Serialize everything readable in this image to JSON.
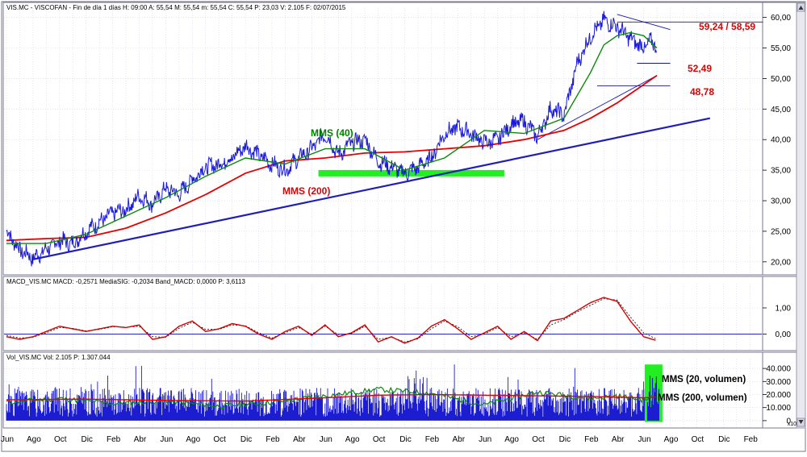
{
  "colors": {
    "price": "#1a1adc",
    "mms40": "#0a8a0a",
    "mms200": "#e60000",
    "trend": "#1f1fb8",
    "macd": "#d40000",
    "signal": "#000000",
    "zero": "#2828c8",
    "support_zone": "#22ee22",
    "volume": "#1c1cd0",
    "vol_mms20": "#0a8a0a",
    "vol_mms200": "#e60000",
    "grid": "#cfd2e8",
    "axis": "#5a5a7a"
  },
  "icons": {
    "scroll_up": "triangle-up",
    "scroll_down": "triangle-down"
  },
  "panels": {
    "price": {
      "header": "VIS.MC - VISCOFAN - Fin de día 1 días  H: 09:00  A: 55,54  M: 55,54  m: 55,54  C: 55,54  P: 23,03  V: 2.105  F: 02/07/2015",
      "scale": "linear",
      "ylim": [
        18,
        61
      ],
      "yticks": [
        20,
        25,
        30,
        35,
        40,
        45,
        50,
        55,
        60
      ],
      "ytick_labels": [
        "20,00",
        "25,00",
        "30,00",
        "35,00",
        "40,00",
        "45,00",
        "50,00",
        "55,00",
        "60,00"
      ]
    },
    "macd": {
      "header": "MACD_VIS.MC  MACD: -0,2571  MediaSIG: -0,2034  Band_MACD: 0,0000  P: 3,6113",
      "ylim": [
        -0.6,
        1.8
      ],
      "yticks": [
        0,
        1
      ],
      "ytick_labels": [
        "0,00",
        "1,00"
      ]
    },
    "volume": {
      "header": "Vol_VIS.MC  Vol: 2.105  P: 1.307.044",
      "ylim": [
        -5000,
        45000
      ],
      "yticks": [
        0,
        10000,
        20000,
        30000,
        40000
      ],
      "ytick_labels": [
        "0",
        "10.000",
        "20.000",
        "30.000",
        "40.000"
      ],
      "axis_suffix": "x10"
    }
  },
  "annotations": {
    "mms40": "MMS (40)",
    "mms200": "MMS (200)",
    "resistance": "59,24 / 58,59",
    "level1": "52,49",
    "level2": "48,78",
    "vol_mms20": "MMS (20, volumen)",
    "vol_mms200": "MMS (200, volumen)"
  },
  "chart_data": {
    "type": "line",
    "x_axis": {
      "unit": "month",
      "start": "2011-06",
      "last_data": "2015-07-02",
      "tick_labels": [
        "Jun",
        "Ago",
        "Oct",
        "Dic",
        "Feb",
        "Abr",
        "Jun",
        "Ago",
        "Oct",
        "Dic",
        "Feb",
        "Abr",
        "Jun",
        "Ago",
        "Oct",
        "Dic",
        "Feb",
        "Abr",
        "Jun",
        "Ago",
        "Oct",
        "Dic",
        "Feb",
        "Abr",
        "Jun",
        "Ago",
        "Oct",
        "Dic",
        "Feb"
      ]
    },
    "price_series": [
      {
        "name": "VIS.MC",
        "type": "line",
        "x": [
          0,
          1,
          2,
          3,
          4,
          5,
          6,
          7,
          8,
          9,
          10,
          11,
          12,
          13,
          14,
          15,
          16,
          17,
          18,
          19,
          20,
          21,
          22,
          23,
          24,
          25,
          26,
          27,
          28,
          29,
          30,
          31,
          32,
          33,
          34,
          35,
          36,
          37,
          38,
          39,
          40,
          41,
          42,
          43,
          44,
          45,
          46,
          47,
          48,
          48.5,
          49
        ],
        "values": [
          25.0,
          22.0,
          20.6,
          22.0,
          23.5,
          23.0,
          25.0,
          26.5,
          28.0,
          28.5,
          30.8,
          29.5,
          32.0,
          31.0,
          33.5,
          35.5,
          36.0,
          37.0,
          39.0,
          37.5,
          36.0,
          35.0,
          37.0,
          38.5,
          41.0,
          37.5,
          39.5,
          40.0,
          36.5,
          35.5,
          34.5,
          35.5,
          37.0,
          41.0,
          42.0,
          41.0,
          39.5,
          40.0,
          42.5,
          43.0,
          40.5,
          45.0,
          44.0,
          52.5,
          57.0,
          59.5,
          58.5,
          56.5,
          55.0,
          56.0,
          55.5
        ]
      },
      {
        "name": "MMS (40)",
        "type": "line",
        "x": [
          0,
          3,
          6,
          9,
          12,
          15,
          18,
          21,
          24,
          27,
          30,
          33,
          36,
          39,
          42,
          44,
          45,
          46,
          47,
          48,
          49
        ],
        "values": [
          23.0,
          23.0,
          24.5,
          27.5,
          30.5,
          34.0,
          37.0,
          36.0,
          38.5,
          38.5,
          35.0,
          37.0,
          41.5,
          41.0,
          43.5,
          51.0,
          55.5,
          57.0,
          57.5,
          57.0,
          55.0
        ]
      },
      {
        "name": "MMS (200)",
        "type": "line",
        "x": [
          0,
          3,
          6,
          9,
          12,
          15,
          18,
          21,
          24,
          27,
          30,
          33,
          36,
          39,
          42,
          44,
          46,
          48,
          49
        ],
        "values": [
          23.5,
          23.8,
          24.0,
          25.5,
          28.0,
          31.0,
          34.5,
          36.5,
          37.0,
          37.8,
          38.0,
          38.5,
          39.0,
          40.0,
          41.5,
          43.5,
          46.0,
          49.0,
          50.5
        ]
      }
    ],
    "drawn_lines": [
      {
        "name": "trend-main",
        "x": [
          2,
          53
        ],
        "values": [
          20.4,
          43.5
        ]
      },
      {
        "name": "trend-steep",
        "x": [
          40,
          49
        ],
        "values": [
          40.0,
          50.5
        ]
      },
      {
        "name": "resistance-down",
        "x": [
          46,
          50
        ],
        "values": [
          60.5,
          58.0
        ]
      },
      {
        "name": "level-59",
        "x": [
          46,
          57
        ],
        "values": [
          59.24,
          59.24
        ]
      },
      {
        "name": "level-52",
        "x": [
          47.5,
          50
        ],
        "values": [
          52.49,
          52.49
        ]
      },
      {
        "name": "level-48",
        "x": [
          44.5,
          50
        ],
        "values": [
          48.78,
          48.78
        ]
      }
    ],
    "support_zone": {
      "x": [
        23.5,
        37.5
      ],
      "value": 34.5
    },
    "macd_series": [
      {
        "name": "MACD",
        "x": [
          0,
          1,
          2,
          3,
          4,
          5,
          6,
          7,
          8,
          9,
          10,
          11,
          12,
          13,
          14,
          15,
          16,
          17,
          18,
          19,
          20,
          21,
          22,
          23,
          24,
          25,
          26,
          27,
          28,
          29,
          30,
          31,
          32,
          33,
          34,
          35,
          36,
          37,
          38,
          39,
          40,
          41,
          42,
          43,
          44,
          45,
          46,
          47,
          48,
          49
        ],
        "values": [
          -0.1,
          -0.2,
          -0.1,
          0.1,
          0.3,
          0.2,
          0.1,
          0.2,
          0.3,
          0.25,
          0.35,
          -0.2,
          -0.1,
          0.3,
          0.5,
          0.1,
          0.2,
          0.4,
          0.3,
          0.0,
          -0.2,
          0.1,
          0.3,
          -0.05,
          0.35,
          -0.1,
          0.05,
          0.35,
          -0.3,
          -0.1,
          -0.35,
          -0.15,
          0.3,
          0.55,
          0.2,
          -0.2,
          0.05,
          0.3,
          -0.2,
          0.1,
          -0.25,
          0.5,
          0.6,
          0.9,
          1.2,
          1.4,
          1.25,
          0.5,
          -0.1,
          -0.25
        ]
      },
      {
        "name": "MediaSIG",
        "x": [
          0,
          1,
          2,
          3,
          4,
          5,
          6,
          7,
          8,
          9,
          10,
          11,
          12,
          13,
          14,
          15,
          16,
          17,
          18,
          19,
          20,
          21,
          22,
          23,
          24,
          25,
          26,
          27,
          28,
          29,
          30,
          31,
          32,
          33,
          34,
          35,
          36,
          37,
          38,
          39,
          40,
          41,
          42,
          43,
          44,
          45,
          46,
          47,
          48,
          49
        ],
        "values": [
          -0.05,
          -0.15,
          -0.12,
          0.05,
          0.25,
          0.22,
          0.12,
          0.18,
          0.28,
          0.26,
          0.3,
          -0.1,
          -0.12,
          0.22,
          0.45,
          0.18,
          0.18,
          0.35,
          0.32,
          0.05,
          -0.15,
          0.05,
          0.25,
          0.0,
          0.3,
          -0.02,
          0.02,
          0.3,
          -0.2,
          -0.12,
          -0.3,
          -0.18,
          0.2,
          0.5,
          0.28,
          -0.1,
          0.0,
          0.25,
          -0.1,
          0.05,
          -0.2,
          0.35,
          0.55,
          0.85,
          1.1,
          1.35,
          1.3,
          0.65,
          0.05,
          -0.2
        ]
      }
    ],
    "volume_series": [
      {
        "name": "MMS (20, volumen)",
        "x": [
          0,
          4,
          8,
          12,
          16,
          20,
          24,
          28,
          32,
          36,
          40,
          44,
          46,
          48,
          49
        ],
        "values": [
          14000,
          17000,
          13000,
          15000,
          11000,
          14000,
          19000,
          24000,
          21000,
          12000,
          22000,
          17000,
          19000,
          16000,
          19000
        ]
      },
      {
        "name": "MMS (200, volumen)",
        "x": [
          0,
          6,
          12,
          18,
          24,
          28,
          32,
          36,
          40,
          44,
          48,
          49
        ],
        "values": [
          16000,
          16500,
          15500,
          15000,
          17500,
          19500,
          20000,
          19500,
          19000,
          18500,
          17500,
          18000
        ]
      }
    ],
    "volume_bars_range": [
      3000,
      43000
    ]
  }
}
